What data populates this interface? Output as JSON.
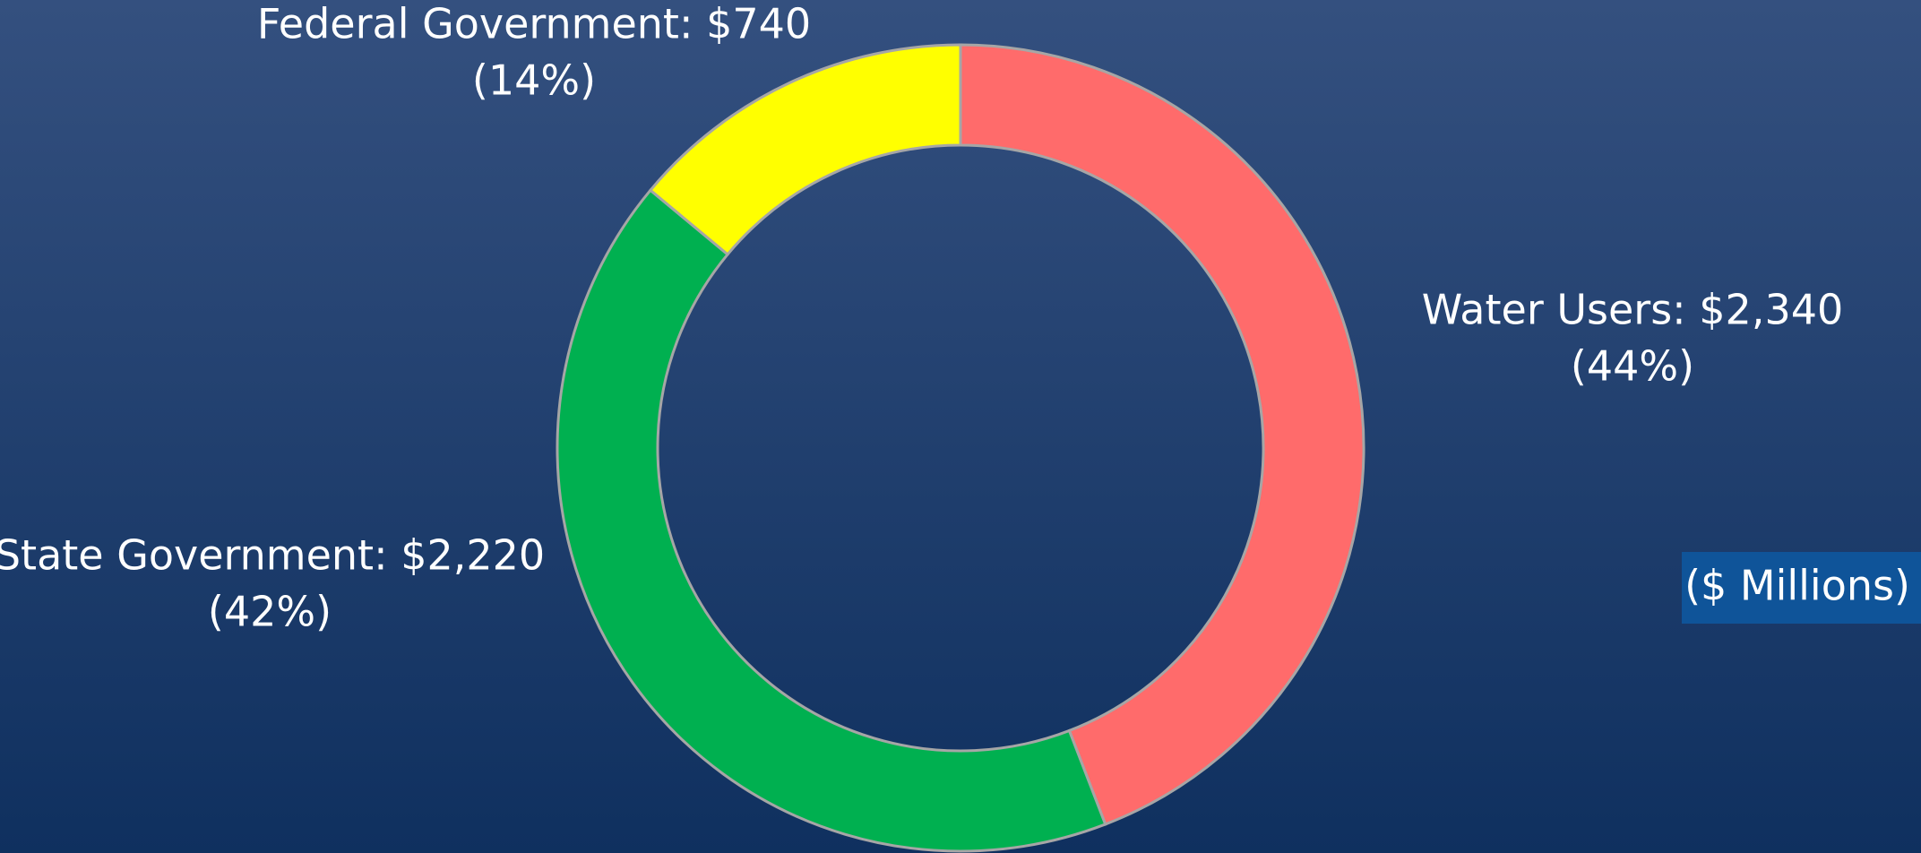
{
  "chart_data": {
    "type": "donut",
    "values": [
      2340,
      2220,
      740
    ],
    "value_labels": [
      "Water Users: $2,340",
      "State Government: $2,220",
      "Federal Government: $740"
    ],
    "percents": [
      44,
      42,
      14
    ],
    "percent_labels": [
      "(44%)",
      "(42%)",
      "(14%)"
    ],
    "colors": [
      "#ff6b6b",
      "#00b050",
      "#ffff00"
    ],
    "note": "($ Millions)"
  }
}
